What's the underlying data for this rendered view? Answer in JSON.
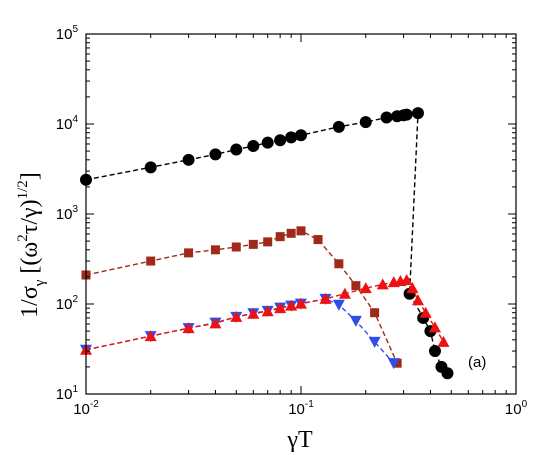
{
  "chart_data": {
    "type": "scatter",
    "xscale": "log",
    "yscale": "log",
    "xlim": [
      0.01,
      1
    ],
    "ylim": [
      10,
      100000
    ],
    "x_ticks": [
      {
        "value": 0.01,
        "base": "10",
        "exp": "-2"
      },
      {
        "value": 0.1,
        "base": "10",
        "exp": "-1"
      },
      {
        "value": 1,
        "base": "10",
        "exp": "0"
      }
    ],
    "y_ticks": [
      {
        "value": 10,
        "base": "10",
        "exp": "1"
      },
      {
        "value": 100,
        "base": "10",
        "exp": "2"
      },
      {
        "value": 1000,
        "base": "10",
        "exp": "3"
      },
      {
        "value": 10000,
        "base": "10",
        "exp": "4"
      },
      {
        "value": 100000,
        "base": "10",
        "exp": "5"
      }
    ],
    "xlabel": "γT",
    "ylabel": {
      "prefix": "1/σ",
      "sub": "γ",
      "open": " [(ω",
      "sup1": "2",
      "mid": "τ/γ)",
      "sup2": "1/2",
      "close": "]"
    },
    "annotation": "(a)",
    "grid": false,
    "series": [
      {
        "marker": "circle",
        "color": "#000000",
        "line_style": "dashed",
        "points": [
          [
            0.01,
            2400
          ],
          [
            0.02,
            3300
          ],
          [
            0.03,
            4000
          ],
          [
            0.04,
            4600
          ],
          [
            0.05,
            5200
          ],
          [
            0.06,
            5700
          ],
          [
            0.07,
            6200
          ],
          [
            0.08,
            6600
          ],
          [
            0.09,
            7100
          ],
          [
            0.1,
            7500
          ],
          [
            0.15,
            9300
          ],
          [
            0.2,
            10500
          ],
          [
            0.25,
            11800
          ],
          [
            0.28,
            12200
          ],
          [
            0.3,
            12500
          ],
          [
            0.31,
            12700
          ],
          [
            0.35,
            13200
          ],
          [
            0.32,
            130
          ],
          [
            0.37,
            70
          ],
          [
            0.4,
            50
          ],
          [
            0.42,
            30
          ],
          [
            0.45,
            20
          ],
          [
            0.48,
            17
          ]
        ]
      },
      {
        "marker": "square",
        "color": "#a0291a",
        "line_style": "dashed",
        "points": [
          [
            0.01,
            210
          ],
          [
            0.02,
            300
          ],
          [
            0.03,
            370
          ],
          [
            0.04,
            400
          ],
          [
            0.05,
            430
          ],
          [
            0.06,
            460
          ],
          [
            0.07,
            490
          ],
          [
            0.08,
            560
          ],
          [
            0.09,
            610
          ],
          [
            0.1,
            650
          ],
          [
            0.12,
            520
          ],
          [
            0.15,
            280
          ],
          [
            0.18,
            160
          ],
          [
            0.22,
            80
          ],
          [
            0.28,
            22
          ]
        ]
      },
      {
        "marker": "triangle-down",
        "color": "#2d4ee8",
        "line_style": "dashed",
        "points": [
          [
            0.01,
            31
          ],
          [
            0.02,
            44
          ],
          [
            0.03,
            54
          ],
          [
            0.04,
            62
          ],
          [
            0.05,
            72
          ],
          [
            0.06,
            79
          ],
          [
            0.07,
            84
          ],
          [
            0.08,
            91
          ],
          [
            0.09,
            96
          ],
          [
            0.1,
            101
          ],
          [
            0.13,
            114
          ],
          [
            0.15,
            98
          ],
          [
            0.18,
            65
          ],
          [
            0.22,
            38
          ],
          [
            0.27,
            22
          ]
        ]
      },
      {
        "marker": "triangle-up",
        "color": "#ee1111",
        "line_style": "dashed",
        "points": [
          [
            0.01,
            31
          ],
          [
            0.02,
            44
          ],
          [
            0.03,
            54
          ],
          [
            0.04,
            61
          ],
          [
            0.05,
            72
          ],
          [
            0.06,
            78
          ],
          [
            0.07,
            83
          ],
          [
            0.08,
            90
          ],
          [
            0.09,
            96
          ],
          [
            0.1,
            101
          ],
          [
            0.13,
            114
          ],
          [
            0.16,
            130
          ],
          [
            0.2,
            150
          ],
          [
            0.24,
            165
          ],
          [
            0.27,
            175
          ],
          [
            0.29,
            180
          ],
          [
            0.31,
            185
          ],
          [
            0.33,
            150
          ],
          [
            0.35,
            110
          ],
          [
            0.38,
            80
          ],
          [
            0.42,
            55
          ],
          [
            0.46,
            38
          ]
        ]
      }
    ]
  }
}
